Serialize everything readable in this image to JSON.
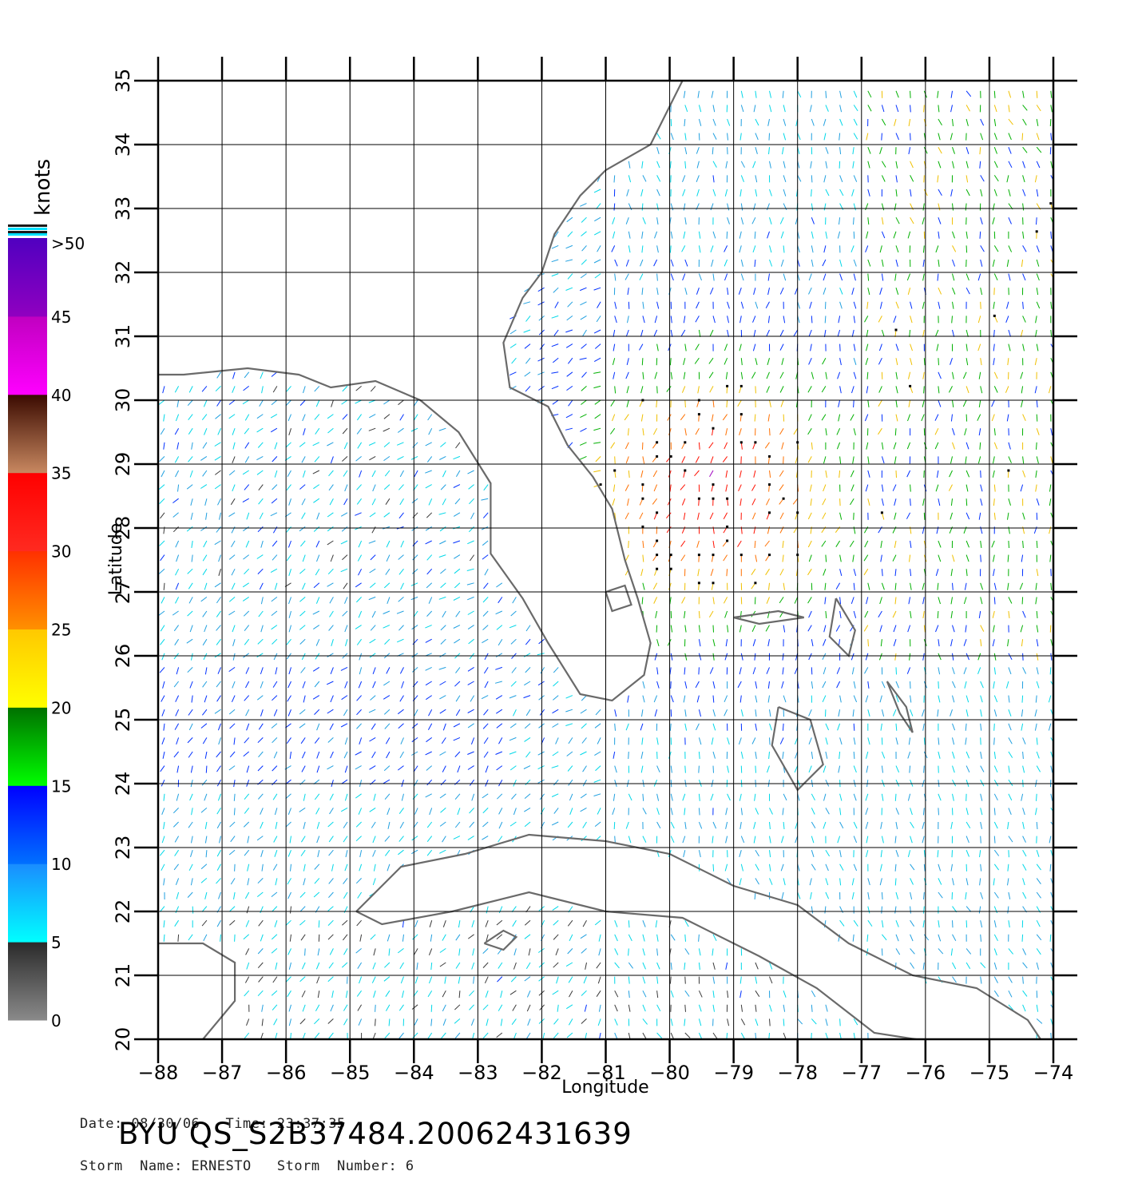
{
  "axes": {
    "xlabel": "Longitude",
    "ylabel": "Latitude",
    "xticks": [
      "−88",
      "−87",
      "−86",
      "−85",
      "−84",
      "−83",
      "−82",
      "−81",
      "−80",
      "−79",
      "−78",
      "−77",
      "−76",
      "−75",
      "−74"
    ],
    "yticks": [
      "20",
      "21",
      "22",
      "23",
      "24",
      "25",
      "26",
      "27",
      "28",
      "29",
      "30",
      "31",
      "32",
      "33",
      "34",
      "35"
    ],
    "xlim": [
      -88,
      -74
    ],
    "ylim": [
      20,
      35
    ]
  },
  "colorbar": {
    "unit": "knots",
    "labels": [
      "0",
      "5",
      "10",
      "15",
      "20",
      "25",
      "30",
      "35",
      "40",
      "45",
      ">50"
    ],
    "bands": [
      {
        "range": [
          0,
          5
        ],
        "top": "#2a2a2a",
        "bottom": "#8a8a8a"
      },
      {
        "range": [
          5,
          10
        ],
        "top": "#1a8cff",
        "bottom": "#00ffff"
      },
      {
        "range": [
          10,
          15
        ],
        "top": "#0000ff",
        "bottom": "#0070ff"
      },
      {
        "range": [
          15,
          20
        ],
        "top": "#007000",
        "bottom": "#00ff00"
      },
      {
        "range": [
          20,
          25
        ],
        "top": "#ffc800",
        "bottom": "#ffff00"
      },
      {
        "range": [
          25,
          30
        ],
        "top": "#ff3000",
        "bottom": "#ff9000"
      },
      {
        "range": [
          30,
          35
        ],
        "top": "#ff0000",
        "bottom": "#ff2a20"
      },
      {
        "range": [
          35,
          40
        ],
        "top": "#3a0a00",
        "bottom": "#c88860"
      },
      {
        "range": [
          40,
          45
        ],
        "top": "#c000c0",
        "bottom": "#ff00ff"
      },
      {
        "range": [
          45,
          50
        ],
        "top": "#5000c0",
        "bottom": "#9000c0"
      }
    ]
  },
  "info": {
    "date_line": "Date: 08/30/06   Time: 23:37:35",
    "storm_line": "Storm  Name: ERNESTO   Storm  Number: 6",
    "file_id": "BYU  QS_S2B37484.20062431639"
  },
  "map_data": {
    "coastlines": [
      {
        "name": "us-east-coast",
        "points": [
          [
            -79.8,
            35.0
          ],
          [
            -80.3,
            34.0
          ],
          [
            -81.0,
            33.6
          ],
          [
            -81.4,
            33.2
          ],
          [
            -81.8,
            32.6
          ],
          [
            -82.0,
            32.0
          ],
          [
            -82.3,
            31.6
          ],
          [
            -82.6,
            30.9
          ],
          [
            -82.5,
            30.2
          ],
          [
            -81.9,
            29.9
          ],
          [
            -81.6,
            29.3
          ],
          [
            -81.2,
            28.8
          ],
          [
            -80.9,
            28.3
          ],
          [
            -80.7,
            27.5
          ],
          [
            -80.5,
            26.9
          ],
          [
            -80.3,
            26.2
          ],
          [
            -80.4,
            25.7
          ],
          [
            -80.9,
            25.3
          ],
          [
            -81.4,
            25.4
          ],
          [
            -81.9,
            26.2
          ],
          [
            -82.3,
            26.9
          ],
          [
            -82.8,
            27.6
          ],
          [
            -82.8,
            28.7
          ],
          [
            -83.3,
            29.5
          ],
          [
            -83.9,
            30.0
          ],
          [
            -84.6,
            30.3
          ],
          [
            -85.3,
            30.2
          ],
          [
            -85.8,
            30.4
          ],
          [
            -86.6,
            30.5
          ],
          [
            -87.6,
            30.4
          ],
          [
            -88.0,
            30.4
          ]
        ]
      },
      {
        "name": "cuba",
        "points": [
          [
            -84.9,
            22.0
          ],
          [
            -84.2,
            22.7
          ],
          [
            -83.2,
            22.9
          ],
          [
            -82.2,
            23.2
          ],
          [
            -81.0,
            23.1
          ],
          [
            -80.0,
            22.9
          ],
          [
            -79.0,
            22.4
          ],
          [
            -78.0,
            22.1
          ],
          [
            -77.2,
            21.5
          ],
          [
            -76.2,
            21.0
          ],
          [
            -75.2,
            20.8
          ],
          [
            -74.4,
            20.3
          ],
          [
            -74.2,
            20.0
          ],
          [
            -75.5,
            19.9
          ],
          [
            -76.8,
            20.1
          ],
          [
            -77.7,
            20.8
          ],
          [
            -78.6,
            21.3
          ],
          [
            -79.8,
            21.9
          ],
          [
            -81.0,
            22.0
          ],
          [
            -82.2,
            22.3
          ],
          [
            -83.4,
            22.0
          ],
          [
            -84.5,
            21.8
          ],
          [
            -84.9,
            22.0
          ]
        ]
      },
      {
        "name": "yucatan",
        "points": [
          [
            -88.0,
            21.5
          ],
          [
            -87.3,
            21.5
          ],
          [
            -86.8,
            21.2
          ],
          [
            -86.8,
            20.6
          ],
          [
            -87.3,
            20.0
          ]
        ]
      },
      {
        "name": "isla-de-la-juventud",
        "points": [
          [
            -82.9,
            21.5
          ],
          [
            -82.6,
            21.7
          ],
          [
            -82.4,
            21.6
          ],
          [
            -82.6,
            21.4
          ],
          [
            -82.9,
            21.5
          ]
        ]
      },
      {
        "name": "andros",
        "points": [
          [
            -78.3,
            25.2
          ],
          [
            -77.8,
            25.0
          ],
          [
            -77.6,
            24.3
          ],
          [
            -78.0,
            23.9
          ],
          [
            -78.4,
            24.6
          ],
          [
            -78.3,
            25.2
          ]
        ]
      },
      {
        "name": "grand-bahama",
        "points": [
          [
            -79.0,
            26.6
          ],
          [
            -78.3,
            26.7
          ],
          [
            -77.9,
            26.6
          ],
          [
            -78.6,
            26.5
          ],
          [
            -79.0,
            26.6
          ]
        ]
      },
      {
        "name": "abaco",
        "points": [
          [
            -77.4,
            26.9
          ],
          [
            -77.1,
            26.4
          ],
          [
            -77.2,
            26.0
          ],
          [
            -77.5,
            26.3
          ],
          [
            -77.4,
            26.9
          ]
        ]
      },
      {
        "name": "eleuthera",
        "points": [
          [
            -76.6,
            25.6
          ],
          [
            -76.3,
            25.2
          ],
          [
            -76.2,
            24.8
          ],
          [
            -76.4,
            25.1
          ],
          [
            -76.6,
            25.6
          ]
        ]
      },
      {
        "name": "lake-okeechobee",
        "points": [
          [
            -81.0,
            27.0
          ],
          [
            -80.7,
            27.1
          ],
          [
            -80.6,
            26.8
          ],
          [
            -80.9,
            26.7
          ],
          [
            -81.0,
            27.0
          ]
        ]
      }
    ]
  }
}
